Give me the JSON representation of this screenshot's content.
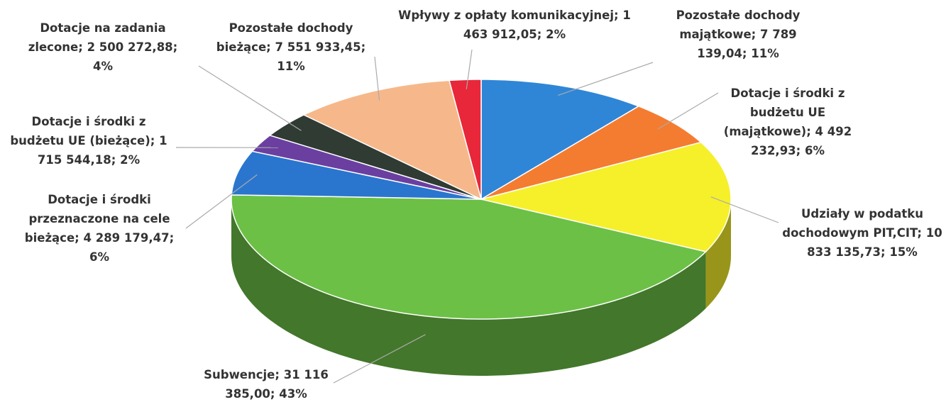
{
  "chart_data": {
    "type": "pie3d",
    "label_separator": "; ",
    "categories": [
      "Pozostałe dochody majątkowe",
      "Dotacje i środki z budżetu UE (majątkowe)",
      "Udziały w podatku dochodowym PIT,CIT",
      "Subwencje",
      "Dotacje i środki przeznaczone na cele bieżące",
      "Dotacje i środki z budżetu UE (bieżące)",
      "Dotacje na zadania zlecone",
      "Pozostałe dochody bieżące",
      "Wpływy z opłaty komunikacyjnej"
    ],
    "values": [
      7789139.04,
      4492232.93,
      10833135.73,
      31116385.0,
      4289179.47,
      1715544.18,
      2500272.88,
      7551933.45,
      1463912.05
    ],
    "value_labels": [
      "7 789 139,04",
      "4 492 232,93",
      "10 833 135,73",
      "31 116 385,00",
      "4 289 179,47",
      "1 715 544,18",
      "2 500 272,88",
      "7 551 933,45",
      "1 463 912,05"
    ],
    "percents": [
      11,
      6,
      15,
      43,
      6,
      2,
      4,
      11,
      2
    ],
    "percent_labels": [
      "11%",
      "6%",
      "15%",
      "43%",
      "6%",
      "2%",
      "4%",
      "11%",
      "2%"
    ],
    "colors": [
      "#2f86d6",
      "#f47c30",
      "#f5f02a",
      "#6cc046",
      "#2a76cf",
      "#6b3fa0",
      "#2f3b33",
      "#f6b88a",
      "#e8273a"
    ]
  }
}
